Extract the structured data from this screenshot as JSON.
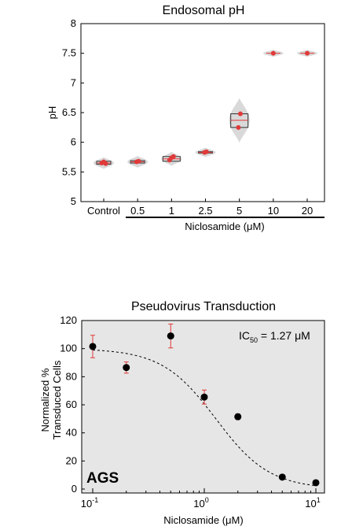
{
  "chart_data": [
    {
      "type": "violin",
      "title": "Endosomal pH",
      "ylabel": "pH",
      "xlabel": "",
      "ylim": [
        5,
        8
      ],
      "yticks": [
        "5",
        "5.5",
        "6",
        "6.5",
        "7",
        "7.5",
        "8"
      ],
      "categories": [
        "Control",
        "0.5",
        "1",
        "2.5",
        "5",
        "10",
        "20"
      ],
      "group_label": "Niclosamide (μM)",
      "grid": false,
      "colors": {
        "violin": "#d9d9d9",
        "point": "#e03a3a",
        "box": "#333333"
      },
      "groups": [
        {
          "category": "Control",
          "points": [
            5.65,
            5.67,
            5.64
          ],
          "q1": 5.63,
          "median": 5.65,
          "q3": 5.68,
          "spread": 0.1
        },
        {
          "category": "0.5",
          "points": [
            5.67,
            5.68
          ],
          "q1": 5.65,
          "median": 5.67,
          "q3": 5.69,
          "spread": 0.1
        },
        {
          "category": "1",
          "points": [
            5.7,
            5.74,
            5.76
          ],
          "q1": 5.68,
          "median": 5.72,
          "q3": 5.76,
          "spread": 0.12
        },
        {
          "category": "2.5",
          "points": [
            5.83,
            5.84
          ],
          "q1": 5.82,
          "median": 5.83,
          "q3": 5.84,
          "spread": 0.08
        },
        {
          "category": "5",
          "points": [
            6.25,
            6.48
          ],
          "q1": 6.25,
          "median": 6.37,
          "q3": 6.48,
          "spread": 0.38
        },
        {
          "category": "10",
          "points": [
            7.5
          ],
          "q1": 7.5,
          "median": 7.5,
          "q3": 7.5,
          "spread": 0.06
        },
        {
          "category": "20",
          "points": [
            7.5
          ],
          "q1": 7.5,
          "median": 7.5,
          "q3": 7.5,
          "spread": 0.06
        }
      ]
    },
    {
      "type": "scatter",
      "title": "Pseudovirus Transduction",
      "xlabel": "Niclosamide (μM)",
      "ylabel_lines": [
        "Normalized %",
        "Transduced Cells"
      ],
      "xscale": "log",
      "xlim": [
        0.1,
        10
      ],
      "ylim": [
        0,
        120
      ],
      "yticks": [
        "0",
        "20",
        "40",
        "60",
        "80",
        "100",
        "120"
      ],
      "xticks": [
        {
          "base": "10",
          "exp": "-1"
        },
        {
          "base": "10",
          "exp": "0"
        },
        {
          "base": "10",
          "exp": "1"
        }
      ],
      "annotation": {
        "ic": "IC",
        "sub": "50",
        "rest": " = 1.27 μM"
      },
      "cell_label": "AGS",
      "grid": false,
      "colors": {
        "background": "#e6e6e6",
        "marker": "#000000",
        "errorbar": "#e03a3a",
        "fit": "#000000"
      },
      "points": [
        {
          "x": 0.1,
          "y": 101.5,
          "err": 8
        },
        {
          "x": 0.2,
          "y": 86.5,
          "err": 4
        },
        {
          "x": 0.5,
          "y": 109,
          "err": 8.5
        },
        {
          "x": 1.0,
          "y": 65.5,
          "err": 5
        },
        {
          "x": 2.0,
          "y": 51.5,
          "err": 2
        },
        {
          "x": 5.0,
          "y": 8.5,
          "err": 1.5
        },
        {
          "x": 10.0,
          "y": 4.5,
          "err": 1
        }
      ],
      "fit": {
        "top": 100,
        "bottom": 0,
        "ic50": 1.27,
        "hill": 1.8
      }
    }
  ]
}
